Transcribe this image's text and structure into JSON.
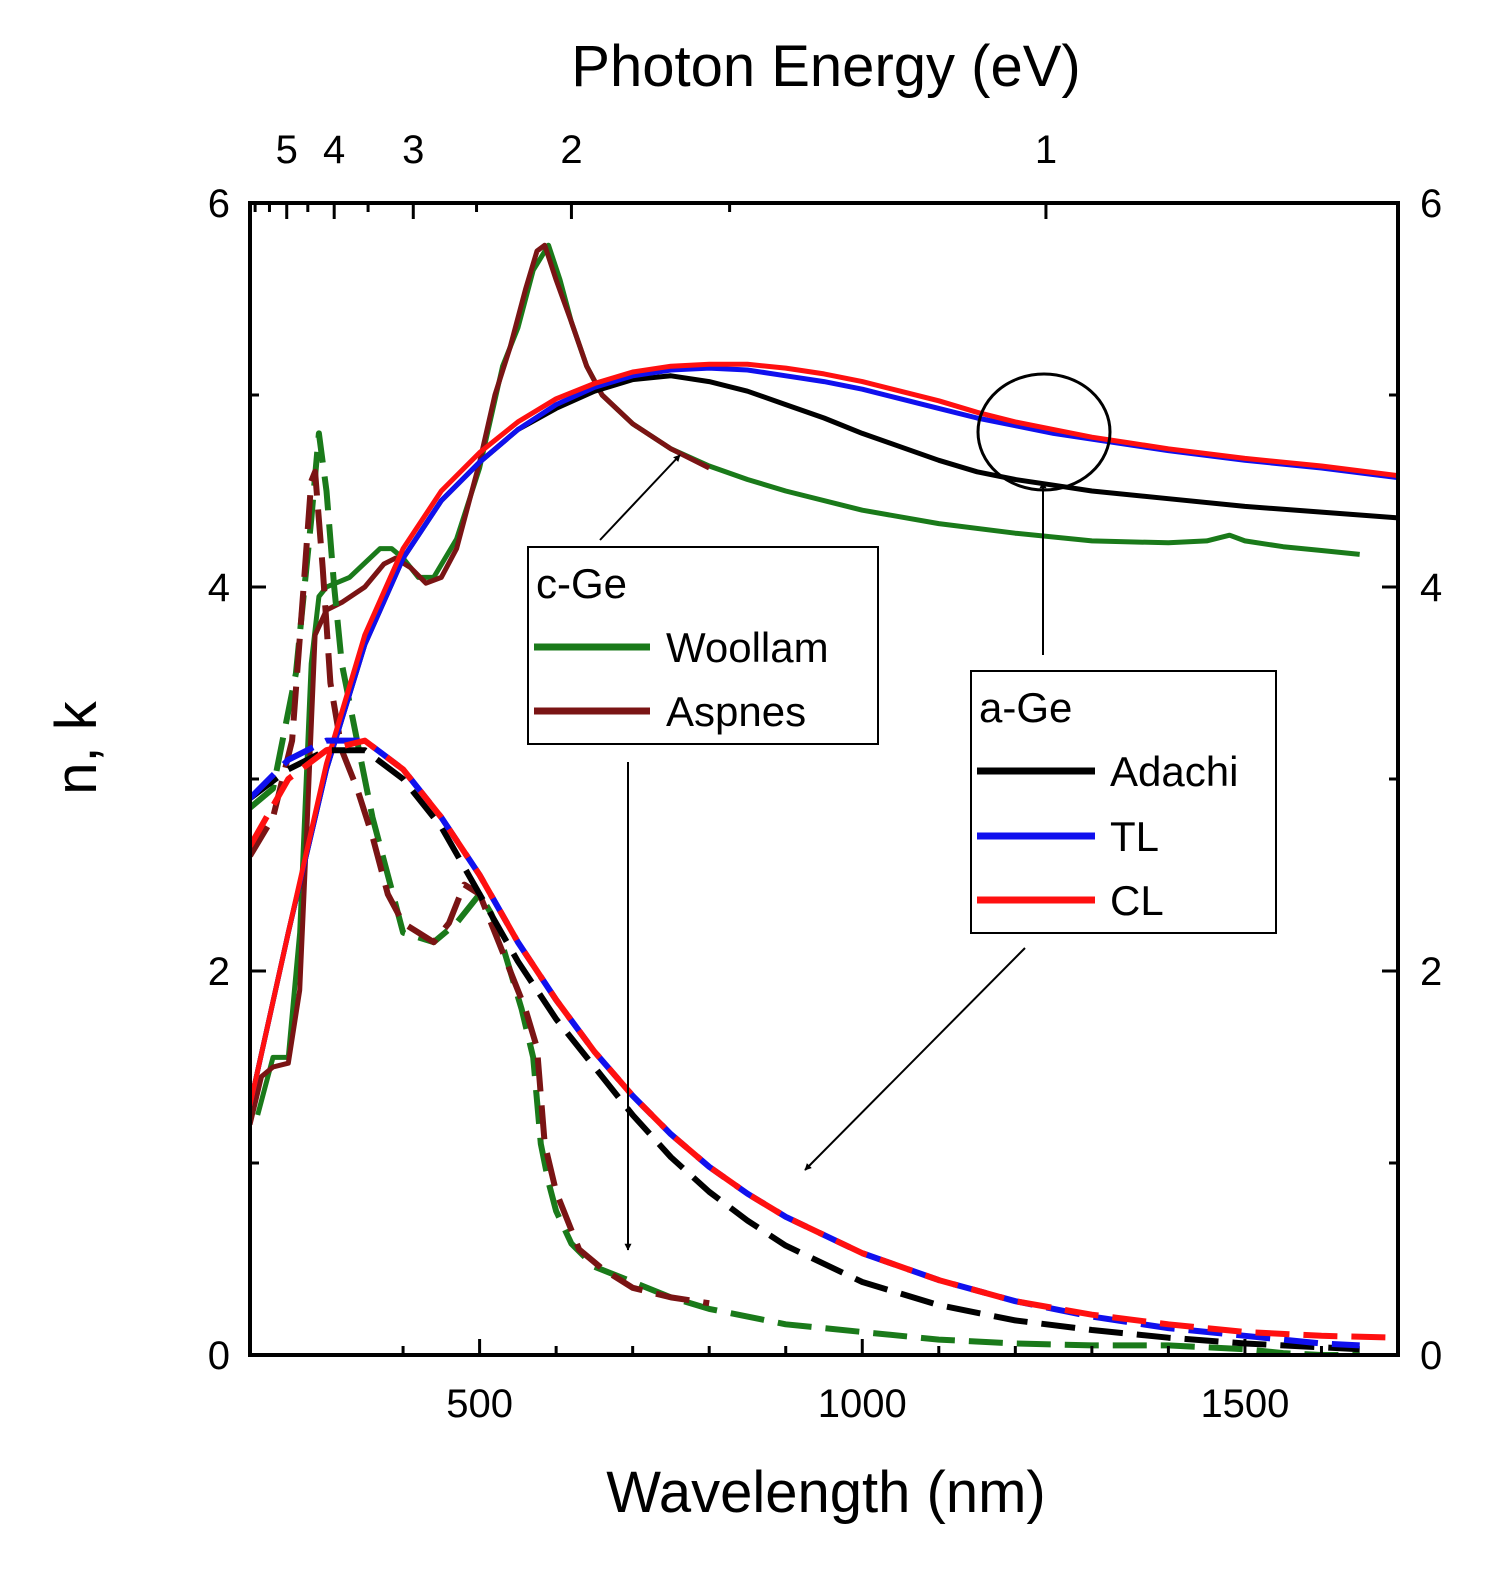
{
  "chart_data": {
    "type": "line",
    "top_axis": {
      "title": "Photon Energy (eV)",
      "tick_labels": [
        "5",
        "4",
        "3",
        "2",
        "1"
      ],
      "tick_values_eV": [
        5,
        4,
        3,
        2,
        1
      ]
    },
    "bottom_axis": {
      "title": "Wavelength (nm)",
      "tick_labels": [
        "500",
        "1000",
        "1500"
      ],
      "tick_values": [
        500,
        1000,
        1500
      ],
      "xlim": [
        200,
        1700
      ]
    },
    "left_axis": {
      "title": "n, k",
      "tick_labels": [
        "0",
        "2",
        "4",
        "6"
      ],
      "tick_values": [
        0,
        2,
        4,
        6
      ],
      "ylim": [
        0,
        6
      ]
    },
    "right_axis": {
      "tick_labels": [
        "0",
        "2",
        "4",
        "6"
      ],
      "tick_values": [
        0,
        2,
        4,
        6
      ]
    },
    "legend_cge": {
      "title": "c-Ge",
      "entries": [
        {
          "label": "Woollam",
          "color": "#1a7a1a"
        },
        {
          "label": "Aspnes",
          "color": "#7a1414"
        }
      ],
      "placement": "center"
    },
    "legend_age": {
      "title": "a-Ge",
      "entries": [
        {
          "label": "Adachi",
          "color": "#000000"
        },
        {
          "label": "TL",
          "color": "#1010ee"
        },
        {
          "label": "CL",
          "color": "#ff1010"
        }
      ],
      "placement": "center-right"
    },
    "series": [
      {
        "name": "Woollam n",
        "color": "#1a7a1a",
        "dash": false,
        "x": [
          210,
          230,
          250,
          265,
          280,
          290,
          300,
          330,
          370,
          385,
          400,
          420,
          440,
          470,
          500,
          530,
          550,
          570,
          590,
          605,
          620,
          640,
          660,
          700,
          750,
          800,
          850,
          900,
          1000,
          1100,
          1200,
          1300,
          1400,
          1450,
          1480,
          1500,
          1550,
          1600,
          1650
        ],
        "y": [
          1.25,
          1.55,
          1.55,
          2.2,
          3.6,
          3.95,
          4.0,
          4.05,
          4.2,
          4.2,
          4.15,
          4.05,
          4.05,
          4.25,
          4.62,
          5.15,
          5.35,
          5.65,
          5.78,
          5.6,
          5.38,
          5.15,
          5.0,
          4.85,
          4.72,
          4.63,
          4.56,
          4.5,
          4.4,
          4.33,
          4.28,
          4.24,
          4.23,
          4.24,
          4.27,
          4.24,
          4.21,
          4.19,
          4.17
        ]
      },
      {
        "name": "Aspnes n",
        "color": "#7a1414",
        "dash": false,
        "x": [
          200,
          215,
          230,
          250,
          265,
          275,
          285,
          300,
          320,
          350,
          375,
          390,
          410,
          430,
          450,
          470,
          500,
          520,
          540,
          560,
          575,
          585,
          600,
          620,
          640,
          660,
          700,
          750,
          800
        ],
        "y": [
          1.2,
          1.45,
          1.5,
          1.52,
          1.9,
          2.8,
          3.75,
          3.88,
          3.92,
          4.0,
          4.12,
          4.15,
          4.1,
          4.02,
          4.05,
          4.2,
          4.65,
          5.0,
          5.25,
          5.55,
          5.75,
          5.78,
          5.6,
          5.38,
          5.15,
          5.0,
          4.85,
          4.72,
          4.62
        ]
      },
      {
        "name": "Woollam k",
        "color": "#1a7a1a",
        "dash": true,
        "x": [
          200,
          230,
          260,
          280,
          290,
          300,
          310,
          320,
          340,
          360,
          380,
          400,
          440,
          470,
          500,
          515,
          525,
          540,
          555,
          570,
          580,
          590,
          600,
          620,
          650,
          700,
          750,
          800,
          900,
          1000,
          1100,
          1200,
          1300,
          1400,
          1500,
          1550,
          1600,
          1650
        ],
        "y": [
          2.85,
          2.95,
          3.55,
          4.35,
          4.8,
          4.5,
          4.0,
          3.6,
          3.2,
          2.8,
          2.5,
          2.2,
          2.15,
          2.25,
          2.4,
          2.3,
          2.2,
          2.0,
          1.8,
          1.55,
          1.1,
          0.9,
          0.75,
          0.58,
          0.46,
          0.38,
          0.3,
          0.24,
          0.16,
          0.12,
          0.08,
          0.06,
          0.05,
          0.05,
          0.03,
          0.01,
          0.0,
          0.0
        ]
      },
      {
        "name": "Aspnes k",
        "color": "#7a1414",
        "dash": true,
        "x": [
          200,
          230,
          255,
          270,
          280,
          285,
          295,
          305,
          320,
          340,
          360,
          380,
          400,
          420,
          440,
          460,
          480,
          500,
          520,
          540,
          560,
          575,
          585,
          600,
          630,
          660,
          700,
          750,
          800
        ],
        "y": [
          2.6,
          2.8,
          3.2,
          4.0,
          4.55,
          4.6,
          4.1,
          3.5,
          3.15,
          2.95,
          2.7,
          2.4,
          2.25,
          2.2,
          2.15,
          2.25,
          2.45,
          2.4,
          2.2,
          2.0,
          1.8,
          1.6,
          1.1,
          0.85,
          0.55,
          0.45,
          0.35,
          0.3,
          0.27
        ]
      },
      {
        "name": "Adachi n",
        "color": "#000000",
        "dash": false,
        "x": [
          200,
          250,
          300,
          350,
          400,
          450,
          500,
          550,
          600,
          650,
          700,
          750,
          800,
          850,
          900,
          950,
          1000,
          1050,
          1100,
          1150,
          1200,
          1250,
          1300,
          1400,
          1500,
          1600,
          1700
        ],
        "y": [
          1.3,
          2.2,
          3.05,
          3.7,
          4.15,
          4.45,
          4.65,
          4.82,
          4.93,
          5.02,
          5.08,
          5.1,
          5.07,
          5.02,
          4.95,
          4.88,
          4.8,
          4.73,
          4.66,
          4.6,
          4.56,
          4.53,
          4.5,
          4.46,
          4.42,
          4.39,
          4.36
        ]
      },
      {
        "name": "TL n",
        "color": "#1010ee",
        "dash": false,
        "x": [
          200,
          250,
          300,
          350,
          400,
          450,
          500,
          550,
          600,
          650,
          700,
          750,
          800,
          850,
          900,
          950,
          1000,
          1050,
          1100,
          1150,
          1200,
          1250,
          1300,
          1350,
          1400,
          1500,
          1600,
          1700
        ],
        "y": [
          1.3,
          2.2,
          3.05,
          3.7,
          4.15,
          4.45,
          4.65,
          4.82,
          4.95,
          5.04,
          5.1,
          5.13,
          5.14,
          5.13,
          5.1,
          5.07,
          5.03,
          4.98,
          4.93,
          4.88,
          4.84,
          4.8,
          4.77,
          4.74,
          4.71,
          4.66,
          4.62,
          4.57
        ]
      },
      {
        "name": "CL n",
        "color": "#ff1010",
        "dash": false,
        "x": [
          200,
          250,
          300,
          350,
          400,
          450,
          500,
          550,
          600,
          650,
          700,
          750,
          800,
          850,
          900,
          950,
          1000,
          1050,
          1100,
          1150,
          1200,
          1250,
          1300,
          1350,
          1400,
          1500,
          1600,
          1700
        ],
        "y": [
          1.3,
          2.2,
          3.08,
          3.75,
          4.2,
          4.5,
          4.7,
          4.86,
          4.98,
          5.06,
          5.12,
          5.15,
          5.16,
          5.16,
          5.14,
          5.11,
          5.07,
          5.02,
          4.97,
          4.91,
          4.86,
          4.82,
          4.78,
          4.75,
          4.72,
          4.67,
          4.63,
          4.58
        ]
      },
      {
        "name": "Adachi k",
        "color": "#000000",
        "dash": true,
        "x": [
          200,
          250,
          300,
          350,
          400,
          450,
          500,
          550,
          600,
          650,
          700,
          750,
          800,
          850,
          900,
          1000,
          1100,
          1200,
          1300,
          1400,
          1500,
          1600,
          1650
        ],
        "y": [
          2.9,
          3.05,
          3.15,
          3.15,
          3.0,
          2.75,
          2.4,
          2.05,
          1.75,
          1.5,
          1.25,
          1.03,
          0.85,
          0.7,
          0.57,
          0.38,
          0.26,
          0.18,
          0.13,
          0.09,
          0.06,
          0.04,
          0.03
        ]
      },
      {
        "name": "TL k",
        "color": "#1010ee",
        "dash": true,
        "x": [
          200,
          250,
          300,
          350,
          400,
          450,
          500,
          550,
          600,
          650,
          700,
          750,
          800,
          850,
          900,
          1000,
          1100,
          1200,
          1300,
          1400,
          1500,
          1600,
          1650
        ],
        "y": [
          2.9,
          3.1,
          3.2,
          3.2,
          3.05,
          2.8,
          2.5,
          2.15,
          1.85,
          1.58,
          1.35,
          1.15,
          0.98,
          0.84,
          0.72,
          0.53,
          0.39,
          0.28,
          0.2,
          0.14,
          0.1,
          0.06,
          0.05
        ]
      },
      {
        "name": "CL k",
        "color": "#ff1010",
        "dash": true,
        "x": [
          200,
          250,
          300,
          350,
          400,
          450,
          500,
          550,
          600,
          650,
          700,
          750,
          800,
          850,
          900,
          1000,
          1100,
          1200,
          1300,
          1400,
          1500,
          1600,
          1700
        ],
        "y": [
          2.65,
          3.0,
          3.15,
          3.2,
          3.05,
          2.8,
          2.5,
          2.15,
          1.85,
          1.58,
          1.35,
          1.15,
          0.98,
          0.84,
          0.72,
          0.53,
          0.39,
          0.28,
          0.21,
          0.16,
          0.12,
          0.1,
          0.09
        ]
      }
    ],
    "annotations": [
      {
        "type": "circle",
        "target": "n curves near 1200-1300 nm"
      },
      {
        "type": "arrow",
        "from": "c-Ge legend",
        "to": "c-Ge n curve"
      },
      {
        "type": "arrow",
        "from": "c-Ge legend",
        "to": "c-Ge k curve"
      },
      {
        "type": "arrow",
        "from": "a-Ge legend",
        "to": "circled a-Ge n curves"
      },
      {
        "type": "arrow",
        "from": "a-Ge legend",
        "to": "a-Ge k curves"
      }
    ]
  }
}
